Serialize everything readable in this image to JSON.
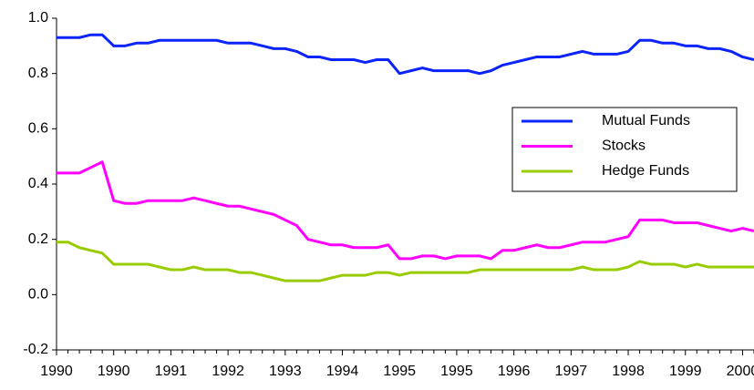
{
  "chart_data": {
    "type": "line",
    "categories": [
      "1990",
      null,
      null,
      null,
      null,
      "1990",
      null,
      null,
      null,
      null,
      "1991",
      null,
      null,
      null,
      null,
      "1992",
      null,
      null,
      null,
      null,
      "1993",
      null,
      null,
      null,
      null,
      "1994",
      null,
      null,
      null,
      null,
      "1995",
      null,
      null,
      null,
      null,
      "1995",
      null,
      null,
      null,
      null,
      "1996",
      null,
      null,
      null,
      null,
      "1997",
      null,
      null,
      null,
      null,
      "1998",
      null,
      null,
      null,
      null,
      "1999",
      null,
      null,
      null,
      null,
      "2000",
      null
    ],
    "series": [
      {
        "name": "Mutual Funds",
        "color": "#0b24fb",
        "values": [
          0.93,
          0.93,
          0.93,
          0.94,
          0.94,
          0.9,
          0.9,
          0.91,
          0.91,
          0.92,
          0.92,
          0.92,
          0.92,
          0.92,
          0.92,
          0.91,
          0.91,
          0.91,
          0.9,
          0.89,
          0.89,
          0.88,
          0.86,
          0.86,
          0.85,
          0.85,
          0.85,
          0.84,
          0.85,
          0.85,
          0.8,
          0.81,
          0.82,
          0.81,
          0.81,
          0.81,
          0.81,
          0.8,
          0.81,
          0.83,
          0.84,
          0.85,
          0.86,
          0.86,
          0.86,
          0.87,
          0.88,
          0.87,
          0.87,
          0.87,
          0.88,
          0.92,
          0.92,
          0.91,
          0.91,
          0.9,
          0.9,
          0.89,
          0.89,
          0.88,
          0.86,
          0.85
        ]
      },
      {
        "name": "Stocks",
        "color": "#ff00ff",
        "values": [
          0.44,
          0.44,
          0.44,
          0.46,
          0.48,
          0.34,
          0.33,
          0.33,
          0.34,
          0.34,
          0.34,
          0.34,
          0.35,
          0.34,
          0.33,
          0.32,
          0.32,
          0.31,
          0.3,
          0.29,
          0.27,
          0.25,
          0.2,
          0.19,
          0.18,
          0.18,
          0.17,
          0.17,
          0.17,
          0.18,
          0.13,
          0.13,
          0.14,
          0.14,
          0.13,
          0.14,
          0.14,
          0.14,
          0.13,
          0.16,
          0.16,
          0.17,
          0.18,
          0.17,
          0.17,
          0.18,
          0.19,
          0.19,
          0.19,
          0.2,
          0.21,
          0.27,
          0.27,
          0.27,
          0.26,
          0.26,
          0.26,
          0.25,
          0.24,
          0.23,
          0.24,
          0.23
        ]
      },
      {
        "name": "Hedge Funds",
        "color": "#99cc00",
        "values": [
          0.19,
          0.19,
          0.17,
          0.16,
          0.15,
          0.11,
          0.11,
          0.11,
          0.11,
          0.1,
          0.09,
          0.09,
          0.1,
          0.09,
          0.09,
          0.09,
          0.08,
          0.08,
          0.07,
          0.06,
          0.05,
          0.05,
          0.05,
          0.05,
          0.06,
          0.07,
          0.07,
          0.07,
          0.08,
          0.08,
          0.07,
          0.08,
          0.08,
          0.08,
          0.08,
          0.08,
          0.08,
          0.09,
          0.09,
          0.09,
          0.09,
          0.09,
          0.09,
          0.09,
          0.09,
          0.09,
          0.1,
          0.09,
          0.09,
          0.09,
          0.1,
          0.12,
          0.11,
          0.11,
          0.11,
          0.1,
          0.11,
          0.1,
          0.1,
          0.1,
          0.1,
          0.1
        ]
      }
    ],
    "ylim": [
      -0.2,
      1.0
    ],
    "yticks": [
      {
        "value": -0.2,
        "label": "-0.2"
      },
      {
        "value": 0,
        "label": "0.0"
      },
      {
        "value": 0.2,
        "label": "0.2"
      },
      {
        "value": 0.4,
        "label": "0.4"
      },
      {
        "value": 0.6,
        "label": "0.6"
      },
      {
        "value": 0.8,
        "label": "0.8"
      },
      {
        "value": 1.0,
        "label": "1.0"
      }
    ],
    "grid": false,
    "legend": "right"
  }
}
